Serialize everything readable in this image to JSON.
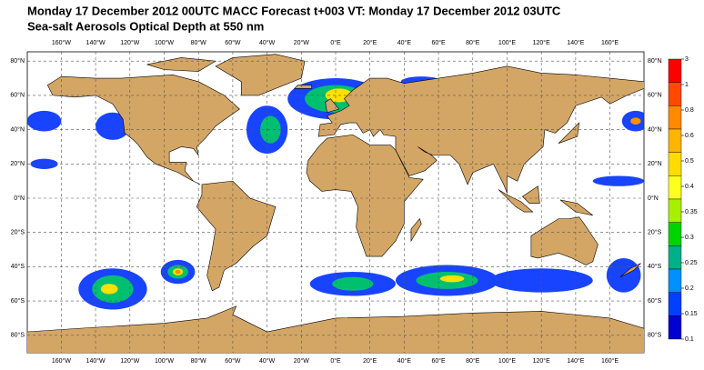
{
  "title": "Monday 17 December 2012 00UTC MACC Forecast t+003 VT: Monday 17 December 2012 03UTC",
  "subtitle": "Sea-salt Aerosols Optical Depth at 550 nm",
  "longitude_labels": [
    "160°W",
    "140°W",
    "120°W",
    "100°W",
    "80°W",
    "60°W",
    "40°W",
    "20°W",
    "0°E",
    "20°E",
    "40°E",
    "60°E",
    "80°E",
    "100°E",
    "120°E",
    "140°E",
    "160°E"
  ],
  "latitude_labels": [
    "80°N",
    "60°N",
    "40°N",
    "20°N",
    "0°N",
    "20°S",
    "40°S",
    "60°S",
    "80°S"
  ],
  "colorbar": {
    "levels": [
      3,
      1,
      0.8,
      0.6,
      0.5,
      0.4,
      0.35,
      0.3,
      0.25,
      0.2,
      0.15,
      0.1
    ],
    "colors": [
      "#ff0000",
      "#ff4a00",
      "#ff8a00",
      "#ffb400",
      "#ffdc00",
      "#ffff20",
      "#a8f000",
      "#00d400",
      "#00b08a",
      "#0090ff",
      "#0040ff",
      "#0000d0"
    ]
  }
}
